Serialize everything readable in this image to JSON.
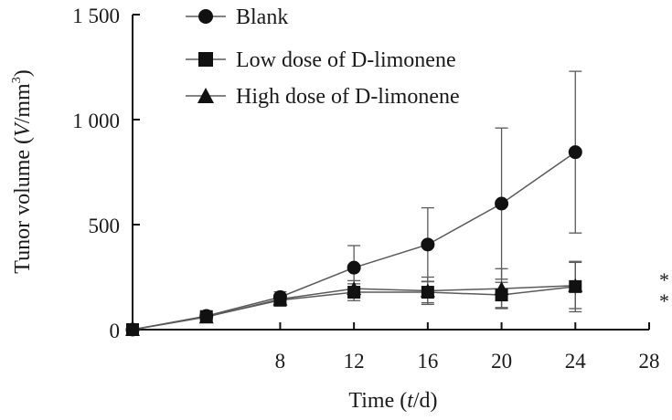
{
  "chart_data": {
    "type": "line",
    "xlabel": {
      "prefix": "Time (",
      "var": "t",
      "suffix": "/d)"
    },
    "ylabel": {
      "prefix": "Tunor volume (",
      "var": "V",
      "suffix": "/mm",
      "sup": "3",
      "close": ")"
    },
    "xlim": [
      0,
      28
    ],
    "ylim": [
      0,
      1500
    ],
    "x_ticks": [
      8,
      12,
      16,
      20,
      24,
      28
    ],
    "y_ticks": [
      0,
      500,
      1000,
      1500
    ],
    "y_tick_labels": [
      "0",
      "500",
      "1 000",
      "1 500"
    ],
    "grid": false,
    "legend_position": "top-left",
    "series": [
      {
        "name": "Blank",
        "marker": "circle",
        "x": [
          0,
          4,
          8,
          12,
          16,
          20,
          24
        ],
        "y": [
          0,
          65,
          155,
          295,
          405,
          600,
          845
        ],
        "err": [
          0,
          12,
          25,
          105,
          175,
          360,
          385
        ]
      },
      {
        "name": "Low dose of D-limonene",
        "marker": "square",
        "x": [
          0,
          4,
          8,
          12,
          16,
          20,
          24
        ],
        "y": [
          0,
          62,
          140,
          178,
          178,
          165,
          205
        ],
        "err": [
          0,
          10,
          22,
          40,
          50,
          60,
          120
        ]
      },
      {
        "name": "High dose of D-limonene",
        "marker": "triangle",
        "x": [
          0,
          4,
          8,
          12,
          16,
          20,
          24
        ],
        "y": [
          0,
          60,
          145,
          195,
          185,
          195,
          210
        ],
        "err": [
          0,
          10,
          20,
          38,
          65,
          95,
          110
        ]
      }
    ],
    "annotations": [
      "*",
      "*"
    ]
  },
  "colors": {
    "line": "#5a5a5a",
    "marker": "#111111",
    "axis": "#111111"
  }
}
